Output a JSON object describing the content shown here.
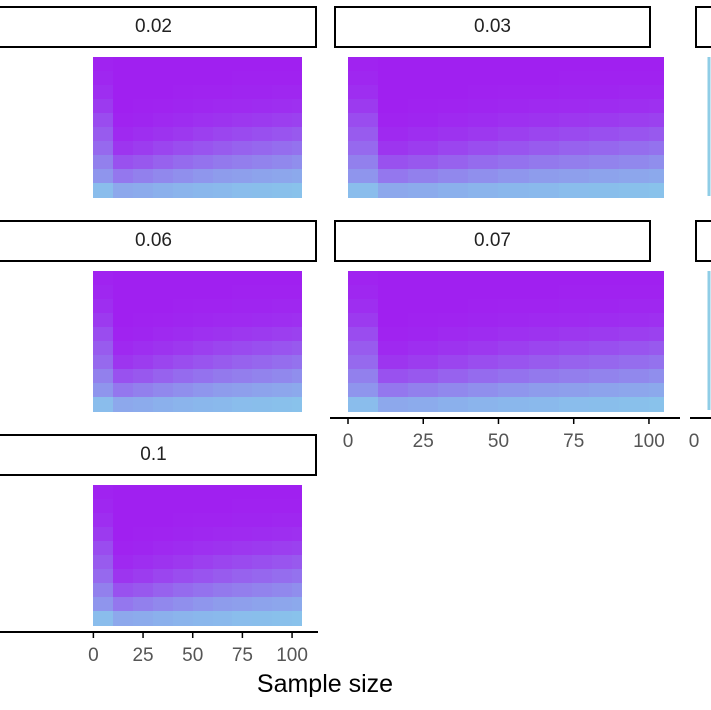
{
  "chart_data": {
    "type": "heatmap",
    "title": "",
    "xlabel": "Sample size",
    "ylabel": "",
    "x_ticks": [
      0,
      25,
      50,
      75,
      100
    ],
    "x_range": [
      0,
      105
    ],
    "sample_sizes": [
      5,
      15,
      25,
      35,
      45,
      55,
      65,
      75,
      85,
      95,
      105
    ],
    "n_rows": 10,
    "color_low": "#87ceeb",
    "color_high": "#a020f0",
    "facets": [
      {
        "label": "0.02",
        "intensity": [
          [
            0.1,
            0.33,
            0.45,
            0.58,
            0.66,
            0.75,
            0.85,
            0.92,
            0.96,
            0.98
          ],
          [
            0.22,
            0.5,
            0.72,
            0.88,
            0.95,
            0.98,
            1.0,
            1.0,
            1.0,
            1.0
          ],
          [
            0.2,
            0.45,
            0.68,
            0.84,
            0.92,
            0.97,
            0.99,
            1.0,
            1.0,
            1.0
          ],
          [
            0.17,
            0.4,
            0.62,
            0.79,
            0.89,
            0.95,
            0.98,
            1.0,
            1.0,
            1.0
          ],
          [
            0.15,
            0.36,
            0.57,
            0.74,
            0.86,
            0.93,
            0.97,
            0.99,
            1.0,
            1.0
          ],
          [
            0.13,
            0.32,
            0.53,
            0.7,
            0.82,
            0.91,
            0.96,
            0.98,
            1.0,
            1.0
          ],
          [
            0.12,
            0.29,
            0.49,
            0.66,
            0.79,
            0.89,
            0.95,
            0.98,
            1.0,
            1.0
          ],
          [
            0.1,
            0.27,
            0.46,
            0.62,
            0.76,
            0.87,
            0.94,
            0.97,
            0.99,
            1.0
          ],
          [
            0.09,
            0.25,
            0.43,
            0.59,
            0.73,
            0.85,
            0.93,
            0.97,
            0.99,
            1.0
          ],
          [
            0.08,
            0.23,
            0.4,
            0.56,
            0.7,
            0.83,
            0.92,
            0.96,
            0.99,
            1.0
          ],
          [
            0.07,
            0.21,
            0.37,
            0.53,
            0.67,
            0.81,
            0.91,
            0.96,
            0.99,
            1.0
          ]
        ]
      },
      {
        "label": "0.03",
        "intensity": [
          [
            0.1,
            0.33,
            0.45,
            0.58,
            0.66,
            0.75,
            0.85,
            0.92,
            0.96,
            0.98
          ],
          [
            0.22,
            0.5,
            0.72,
            0.88,
            0.95,
            0.98,
            1.0,
            1.0,
            1.0,
            1.0
          ],
          [
            0.2,
            0.45,
            0.68,
            0.84,
            0.92,
            0.97,
            0.99,
            1.0,
            1.0,
            1.0
          ],
          [
            0.17,
            0.4,
            0.62,
            0.79,
            0.89,
            0.95,
            0.98,
            1.0,
            1.0,
            1.0
          ],
          [
            0.15,
            0.36,
            0.57,
            0.74,
            0.86,
            0.93,
            0.97,
            0.99,
            1.0,
            1.0
          ],
          [
            0.13,
            0.32,
            0.53,
            0.7,
            0.82,
            0.91,
            0.96,
            0.98,
            1.0,
            1.0
          ],
          [
            0.12,
            0.29,
            0.49,
            0.66,
            0.79,
            0.89,
            0.95,
            0.98,
            1.0,
            1.0
          ],
          [
            0.1,
            0.27,
            0.46,
            0.62,
            0.76,
            0.87,
            0.94,
            0.97,
            0.99,
            1.0
          ],
          [
            0.09,
            0.25,
            0.43,
            0.59,
            0.73,
            0.85,
            0.93,
            0.97,
            0.99,
            1.0
          ],
          [
            0.08,
            0.23,
            0.4,
            0.56,
            0.7,
            0.83,
            0.92,
            0.96,
            0.99,
            1.0
          ],
          [
            0.07,
            0.21,
            0.37,
            0.53,
            0.67,
            0.81,
            0.91,
            0.96,
            0.99,
            1.0
          ]
        ]
      },
      {
        "label": "0.06",
        "intensity": [
          [
            0.1,
            0.33,
            0.45,
            0.58,
            0.66,
            0.75,
            0.85,
            0.92,
            0.96,
            0.98
          ],
          [
            0.22,
            0.5,
            0.72,
            0.88,
            0.95,
            0.98,
            1.0,
            1.0,
            1.0,
            1.0
          ],
          [
            0.2,
            0.45,
            0.68,
            0.84,
            0.92,
            0.97,
            0.99,
            1.0,
            1.0,
            1.0
          ],
          [
            0.17,
            0.4,
            0.62,
            0.79,
            0.89,
            0.95,
            0.98,
            1.0,
            1.0,
            1.0
          ],
          [
            0.15,
            0.36,
            0.57,
            0.74,
            0.86,
            0.93,
            0.97,
            0.99,
            1.0,
            1.0
          ],
          [
            0.13,
            0.32,
            0.53,
            0.7,
            0.82,
            0.91,
            0.96,
            0.98,
            1.0,
            1.0
          ],
          [
            0.12,
            0.29,
            0.49,
            0.66,
            0.79,
            0.89,
            0.95,
            0.98,
            1.0,
            1.0
          ],
          [
            0.1,
            0.27,
            0.46,
            0.62,
            0.76,
            0.87,
            0.94,
            0.97,
            0.99,
            1.0
          ],
          [
            0.09,
            0.25,
            0.43,
            0.59,
            0.73,
            0.85,
            0.93,
            0.97,
            0.99,
            1.0
          ],
          [
            0.08,
            0.23,
            0.4,
            0.56,
            0.7,
            0.83,
            0.92,
            0.96,
            0.99,
            1.0
          ],
          [
            0.07,
            0.21,
            0.37,
            0.53,
            0.67,
            0.81,
            0.91,
            0.96,
            0.99,
            1.0
          ]
        ]
      },
      {
        "label": "0.07",
        "intensity": [
          [
            0.1,
            0.33,
            0.45,
            0.58,
            0.66,
            0.75,
            0.85,
            0.92,
            0.96,
            0.98
          ],
          [
            0.22,
            0.5,
            0.72,
            0.88,
            0.95,
            0.98,
            1.0,
            1.0,
            1.0,
            1.0
          ],
          [
            0.2,
            0.45,
            0.68,
            0.84,
            0.92,
            0.97,
            0.99,
            1.0,
            1.0,
            1.0
          ],
          [
            0.17,
            0.4,
            0.62,
            0.79,
            0.89,
            0.95,
            0.98,
            1.0,
            1.0,
            1.0
          ],
          [
            0.15,
            0.36,
            0.57,
            0.74,
            0.86,
            0.93,
            0.97,
            0.99,
            1.0,
            1.0
          ],
          [
            0.13,
            0.32,
            0.53,
            0.7,
            0.82,
            0.91,
            0.96,
            0.98,
            1.0,
            1.0
          ],
          [
            0.12,
            0.29,
            0.49,
            0.66,
            0.79,
            0.89,
            0.95,
            0.98,
            1.0,
            1.0
          ],
          [
            0.1,
            0.27,
            0.46,
            0.62,
            0.76,
            0.87,
            0.94,
            0.97,
            0.99,
            1.0
          ],
          [
            0.09,
            0.25,
            0.43,
            0.59,
            0.73,
            0.85,
            0.93,
            0.97,
            0.99,
            1.0
          ],
          [
            0.08,
            0.23,
            0.4,
            0.56,
            0.7,
            0.83,
            0.92,
            0.96,
            0.99,
            1.0
          ],
          [
            0.07,
            0.21,
            0.37,
            0.53,
            0.67,
            0.81,
            0.91,
            0.96,
            0.99,
            1.0
          ]
        ]
      },
      {
        "label": "0.1",
        "intensity": [
          [
            0.1,
            0.33,
            0.45,
            0.58,
            0.66,
            0.75,
            0.85,
            0.92,
            0.96,
            0.98
          ],
          [
            0.22,
            0.5,
            0.72,
            0.88,
            0.95,
            0.98,
            1.0,
            1.0,
            1.0,
            1.0
          ],
          [
            0.2,
            0.45,
            0.68,
            0.84,
            0.92,
            0.97,
            0.99,
            1.0,
            1.0,
            1.0
          ],
          [
            0.17,
            0.4,
            0.62,
            0.79,
            0.89,
            0.95,
            0.98,
            1.0,
            1.0,
            1.0
          ],
          [
            0.15,
            0.36,
            0.57,
            0.74,
            0.86,
            0.93,
            0.97,
            0.99,
            1.0,
            1.0
          ],
          [
            0.13,
            0.32,
            0.53,
            0.7,
            0.82,
            0.91,
            0.96,
            0.98,
            1.0,
            1.0
          ],
          [
            0.12,
            0.29,
            0.49,
            0.66,
            0.79,
            0.89,
            0.95,
            0.98,
            1.0,
            1.0
          ],
          [
            0.1,
            0.27,
            0.46,
            0.62,
            0.76,
            0.87,
            0.94,
            0.97,
            0.99,
            1.0
          ],
          [
            0.09,
            0.25,
            0.43,
            0.59,
            0.73,
            0.85,
            0.93,
            0.97,
            0.99,
            1.0
          ],
          [
            0.08,
            0.23,
            0.4,
            0.56,
            0.7,
            0.83,
            0.92,
            0.96,
            0.99,
            1.0
          ],
          [
            0.07,
            0.21,
            0.37,
            0.53,
            0.67,
            0.81,
            0.91,
            0.96,
            0.99,
            1.0
          ]
        ]
      }
    ]
  }
}
